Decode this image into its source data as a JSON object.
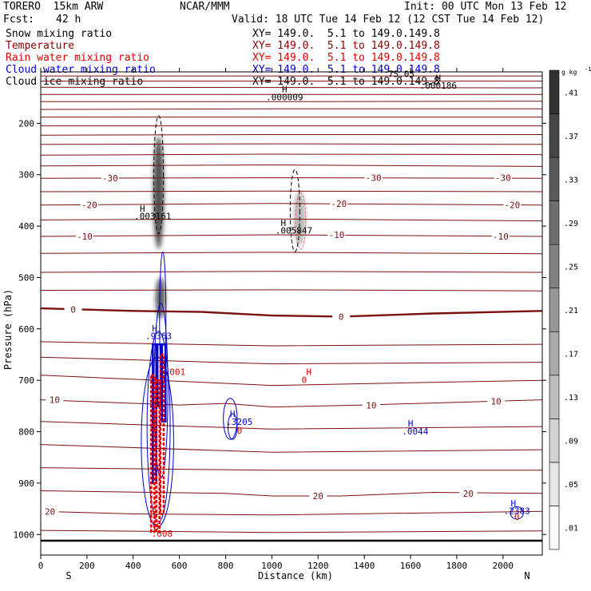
{
  "header": {
    "model": "TORERO  15km ARW",
    "org": "NCAR/MMM",
    "init": "Init: 00 UTC Mon 13 Feb 12",
    "fcst_label": "Fcst:",
    "fcst_value": "42 h",
    "valid": "Valid: 18 UTC Tue 14 Feb 12 (12 CST Tue 14 Feb 12)"
  },
  "fields": [
    {
      "name": "Snow mixing ratio",
      "color": "#000000",
      "xy": "XY= 149.0.  5.1 to 149.0.149.8"
    },
    {
      "name": "Temperature",
      "color": "#8b0000",
      "xy": "XY= 149.0.  5.1 to 149.0.149.8"
    },
    {
      "name": "Rain water mixing ratio",
      "color": "#e00000",
      "xy": "XY= 149.0.  5.1 to 149.0.149.8"
    },
    {
      "name": "Cloud water mixing ratio",
      "color": "#0000cc",
      "xy": "XY= 149.0.  5.1 to 149.0.149.8"
    },
    {
      "name": "Cloud ice mixing ratio",
      "color": "#000000",
      "xy": "XY= 149.0.  5.1 to 149.0.149.8"
    }
  ],
  "colors": {
    "temperature": "#7a0f0f",
    "rain": "#e00000",
    "cloud_water": "#0000cc",
    "snow": "#000000",
    "frame": "#000000"
  },
  "chart_data": {
    "type": "cross-section",
    "xlabel": "Distance (km)",
    "ylabel": "Pressure (hPa)",
    "xlim": [
      0,
      2170
    ],
    "ylim": [
      100,
      1040
    ],
    "x_ticks": [
      0,
      200,
      400,
      600,
      800,
      1000,
      1200,
      1400,
      1600,
      1800,
      2000
    ],
    "y_ticks": [
      200,
      300,
      400,
      500,
      600,
      700,
      800,
      900,
      1000
    ],
    "x_end_labels": {
      "left": "S",
      "right": "N"
    },
    "colorbar": {
      "unit": "g kg",
      "exponent": "-1",
      "levels": [
        0.01,
        0.05,
        0.09,
        0.13,
        0.17,
        0.21,
        0.25,
        0.29,
        0.33,
        0.37,
        0.41
      ]
    },
    "surface_pressure": 1012,
    "isotherms": [
      {
        "pts": [
          [
            0,
            108
          ],
          [
            2170,
            108
          ]
        ]
      },
      {
        "pts": [
          [
            0,
            118
          ],
          [
            2170,
            118
          ]
        ]
      },
      {
        "pts": [
          [
            0,
            130
          ],
          [
            2170,
            131
          ]
        ]
      },
      {
        "pts": [
          [
            0,
            144
          ],
          [
            2170,
            144
          ]
        ]
      },
      {
        "pts": [
          [
            0,
            158
          ],
          [
            1000,
            158
          ],
          [
            2170,
            157
          ]
        ]
      },
      {
        "pts": [
          [
            0,
            173
          ],
          [
            1000,
            172
          ],
          [
            2170,
            172
          ]
        ]
      },
      {
        "pts": [
          [
            0,
            188
          ],
          [
            1000,
            188
          ],
          [
            2170,
            188
          ]
        ]
      },
      {
        "pts": [
          [
            0,
            205
          ],
          [
            1000,
            205
          ],
          [
            2170,
            205
          ]
        ]
      },
      {
        "pts": [
          [
            0,
            223
          ],
          [
            1000,
            222
          ],
          [
            2170,
            222
          ]
        ]
      },
      {
        "pts": [
          [
            0,
            241
          ],
          [
            1000,
            240
          ],
          [
            2170,
            241
          ]
        ]
      },
      {
        "pts": [
          [
            0,
            262
          ],
          [
            1000,
            260
          ],
          [
            2170,
            261
          ]
        ]
      },
      {
        "pts": [
          [
            0,
            283
          ],
          [
            1000,
            281
          ],
          [
            2170,
            284
          ]
        ]
      },
      {
        "pts": [
          [
            0,
            307
          ],
          [
            1000,
            306
          ],
          [
            2170,
            307
          ]
        ],
        "label": "-30",
        "lx": [
          300,
          1440,
          2000
        ],
        "ly": [
          307,
          306,
          306
        ]
      },
      {
        "pts": [
          [
            0,
            333
          ],
          [
            1000,
            332
          ],
          [
            2170,
            333
          ]
        ]
      },
      {
        "pts": [
          [
            0,
            359
          ],
          [
            1000,
            356
          ],
          [
            2170,
            359
          ]
        ],
        "label": "-20",
        "lx": [
          210,
          1290,
          2040
        ],
        "ly": [
          359,
          356,
          359
        ]
      },
      {
        "pts": [
          [
            0,
            388
          ],
          [
            1000,
            386
          ],
          [
            2170,
            390
          ]
        ]
      },
      {
        "pts": [
          [
            0,
            420
          ],
          [
            1000,
            417
          ],
          [
            2170,
            420
          ]
        ],
        "label": "-10",
        "lx": [
          190,
          1280,
          1990
        ],
        "ly": [
          420,
          417,
          420
        ]
      },
      {
        "pts": [
          [
            0,
            453
          ],
          [
            1000,
            451
          ],
          [
            2170,
            454
          ]
        ]
      },
      {
        "pts": [
          [
            0,
            490
          ],
          [
            1000,
            488
          ],
          [
            2170,
            490
          ]
        ]
      },
      {
        "pts": [
          [
            0,
            525
          ],
          [
            1000,
            524
          ],
          [
            2170,
            526
          ]
        ]
      },
      {
        "pts": [
          [
            0,
            560
          ],
          [
            400,
            565
          ],
          [
            700,
            567
          ],
          [
            1000,
            574
          ],
          [
            1300,
            576
          ],
          [
            1700,
            570
          ],
          [
            2170,
            565
          ]
        ],
        "thick": true,
        "label": "0",
        "lx": [
          140,
          1300
        ],
        "ly": [
          562,
          576
        ]
      },
      {
        "pts": [
          [
            0,
            625
          ],
          [
            1000,
            633
          ],
          [
            2170,
            630
          ]
        ]
      },
      {
        "pts": [
          [
            0,
            655
          ],
          [
            1000,
            668
          ],
          [
            2170,
            665
          ]
        ]
      },
      {
        "pts": [
          [
            0,
            690
          ],
          [
            1000,
            710
          ],
          [
            2170,
            700
          ]
        ]
      },
      {
        "pts": [
          [
            0,
            738
          ],
          [
            600,
            748
          ],
          [
            800,
            745
          ],
          [
            1000,
            752
          ],
          [
            1400,
            748
          ],
          [
            2170,
            738
          ]
        ],
        "label": "10",
        "lx": [
          60,
          1430,
          1970
        ],
        "ly": [
          738,
          749,
          741
        ]
      },
      {
        "pts": [
          [
            0,
            780
          ],
          [
            1000,
            795
          ],
          [
            2170,
            790
          ]
        ]
      },
      {
        "pts": [
          [
            0,
            825
          ],
          [
            1000,
            840
          ],
          [
            2170,
            835
          ]
        ]
      },
      {
        "pts": [
          [
            0,
            870
          ],
          [
            1000,
            875
          ],
          [
            2170,
            875
          ]
        ]
      },
      {
        "pts": [
          [
            0,
            915
          ],
          [
            800,
            920
          ],
          [
            1000,
            925
          ],
          [
            1300,
            925
          ],
          [
            1700,
            918
          ],
          [
            2170,
            920
          ]
        ],
        "label": "20",
        "lx": [
          1200,
          1850
        ],
        "ly": [
          925,
          920
        ]
      },
      {
        "pts": [
          [
            0,
            955
          ],
          [
            400,
            960
          ],
          [
            1000,
            962
          ],
          [
            2170,
            955
          ]
        ],
        "label": "20",
        "lx": [
          40
        ],
        "ly": [
          955
        ]
      },
      {
        "pts": [
          [
            0,
            992
          ],
          [
            1000,
            996
          ],
          [
            2170,
            993
          ]
        ]
      }
    ],
    "snow_blobs": [
      {
        "x": 510,
        "p": 335,
        "w": 26,
        "h": 220,
        "a": 0.85
      },
      {
        "x": 518,
        "p": 540,
        "w": 22,
        "h": 80,
        "a": 0.8
      },
      {
        "x": 1120,
        "p": 385,
        "w": 30,
        "h": 105,
        "a": 0.35
      }
    ],
    "snow_contours": [
      {
        "cx": 510,
        "cp": 300,
        "rx": 14,
        "rp": 115,
        "dash": true
      },
      {
        "cx": 1100,
        "cp": 370,
        "rx": 20,
        "rp": 80,
        "dash": true
      }
    ],
    "cloud_water_contours": [
      {
        "cx": 528,
        "cp": 580,
        "rx": 12,
        "rp": 130
      },
      {
        "cx": 520,
        "cp": 720,
        "rx": 30,
        "rp": 170
      },
      {
        "cx": 510,
        "cp": 790,
        "rx": 50,
        "rp": 185
      },
      {
        "cx": 505,
        "cp": 820,
        "rx": 70,
        "rp": 165
      },
      {
        "cx": 820,
        "cp": 775,
        "rx": 30,
        "rp": 40
      },
      {
        "cx": 830,
        "cp": 790,
        "rx": 20,
        "rp": 25
      },
      {
        "cx": 2060,
        "cp": 958,
        "rx": 28,
        "rp": 12
      }
    ],
    "cloud_water_bars": [
      {
        "x0": 485,
        "x1": 500,
        "p0": 630,
        "p1": 900
      },
      {
        "x0": 505,
        "x1": 520,
        "p0": 630,
        "p1": 750
      },
      {
        "x0": 525,
        "x1": 540,
        "p0": 630,
        "p1": 780
      }
    ],
    "rain_bars": [
      {
        "x0": 478,
        "x1": 492,
        "p0": 690,
        "p1": 995
      },
      {
        "x0": 500,
        "x1": 514,
        "p0": 700,
        "p1": 995
      },
      {
        "x0": 518,
        "x1": 532,
        "p0": 650,
        "p1": 960
      }
    ],
    "rain_contours": [
      {
        "cx": 1125,
        "cp": 390,
        "rx": 22,
        "rp": 55
      }
    ],
    "annotations": [
      {
        "x": 1055,
        "p": 140,
        "text": "H",
        "color": "#000000"
      },
      {
        "x": 1055,
        "p": 155,
        "text": ".000009",
        "color": "#000000"
      },
      {
        "x": 1720,
        "p": 118,
        "text": "H",
        "color": "#000000"
      },
      {
        "x": 1720,
        "p": 133,
        "text": ".000186",
        "color": "#000000"
      },
      {
        "x": 440,
        "p": 372,
        "text": "H",
        "color": "#000000"
      },
      {
        "x": 485,
        "p": 387,
        "text": ".003161",
        "color": "#000000"
      },
      {
        "x": 1050,
        "p": 400,
        "text": "H",
        "color": "#000000"
      },
      {
        "x": 1095,
        "p": 415,
        "text": ".005847",
        "color": "#000000"
      },
      {
        "x": 493,
        "p": 605,
        "text": "H",
        "color": "#0000cc"
      },
      {
        "x": 510,
        "p": 620,
        "text": ".9363",
        "color": "#0000cc"
      },
      {
        "x": 580,
        "p": 690,
        "text": ".001",
        "color": "#e00000"
      },
      {
        "x": 1160,
        "p": 690,
        "text": "H",
        "color": "#e00000"
      },
      {
        "x": 1140,
        "p": 705,
        "text": "0",
        "color": "#e00000"
      },
      {
        "x": 830,
        "p": 771,
        "text": "H",
        "color": "#0000cc"
      },
      {
        "x": 860,
        "p": 787,
        "text": ".3205",
        "color": "#0000cc"
      },
      {
        "x": 860,
        "p": 804,
        "text": "0",
        "color": "#e00000"
      },
      {
        "x": 1600,
        "p": 790,
        "text": "H",
        "color": "#0000cc"
      },
      {
        "x": 1620,
        "p": 805,
        "text": ".0044",
        "color": "#0000cc"
      },
      {
        "x": 485,
        "p": 795,
        "text": "0",
        "color": "#e00000"
      },
      {
        "x": 495,
        "p": 882,
        "text": "1",
        "color": "#0000cc"
      },
      {
        "x": 2045,
        "p": 945,
        "text": "H",
        "color": "#0000cc"
      },
      {
        "x": 2060,
        "p": 960,
        "text": ".2383",
        "color": "#0000cc"
      },
      {
        "x": 2060,
        "p": 972,
        "text": "0",
        "color": "#e00000"
      },
      {
        "x": 500,
        "p": 990,
        "text": "H",
        "color": "#e00000"
      },
      {
        "x": 525,
        "p": 1004,
        "text": ".008",
        "color": "#e00000"
      },
      {
        "x": 1560,
        "p": 110,
        "text": "75.05",
        "color": "#000000"
      }
    ]
  }
}
